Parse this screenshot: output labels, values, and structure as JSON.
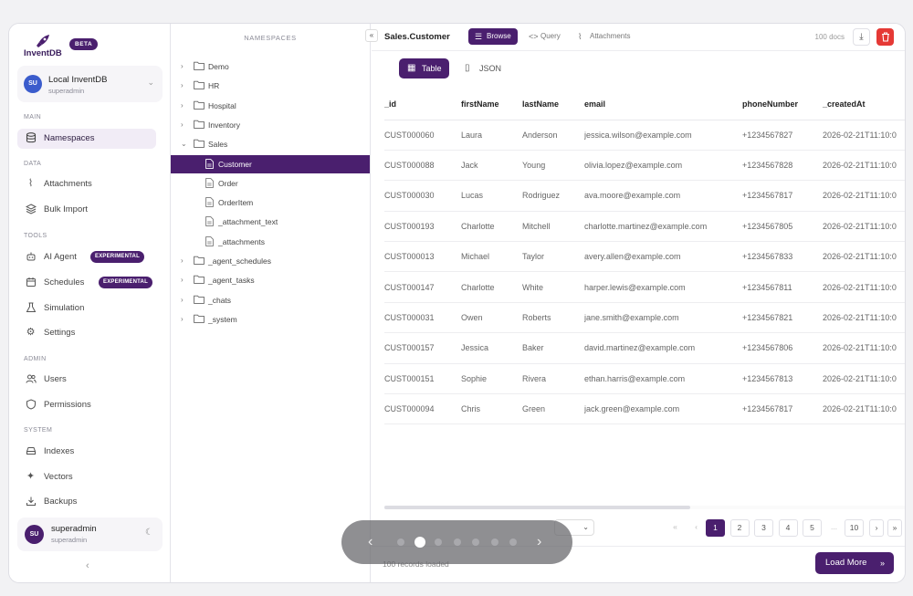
{
  "brand": {
    "name": "InventDB",
    "badge": "BETA"
  },
  "db": {
    "avatar": "SU",
    "name": "Local InventDB",
    "user": "superadmin"
  },
  "sidebar": {
    "sections": {
      "main": "MAIN",
      "data": "DATA",
      "tools": "TOOLS",
      "admin": "ADMIN",
      "system": "SYSTEM"
    },
    "items": {
      "namespaces": "Namespaces",
      "attachments": "Attachments",
      "bulk_import": "Bulk Import",
      "ai_agent": "AI Agent",
      "schedules": "Schedules",
      "simulation": "Simulation",
      "settings": "Settings",
      "users": "Users",
      "permissions": "Permissions",
      "indexes": "Indexes",
      "vectors": "Vectors",
      "backups": "Backups"
    },
    "experimental_badge": "EXPERIMENTAL"
  },
  "user": {
    "avatar": "SU",
    "name": "superadmin",
    "sub": "superadmin"
  },
  "tree": {
    "header": "NAMESPACES",
    "collapse_icon": "«",
    "items": [
      {
        "label": "Demo",
        "kind": "folder",
        "expanded": false
      },
      {
        "label": "HR",
        "kind": "folder",
        "expanded": false
      },
      {
        "label": "Hospital",
        "kind": "folder",
        "expanded": false
      },
      {
        "label": "Inventory",
        "kind": "folder",
        "expanded": false
      },
      {
        "label": "Sales",
        "kind": "folder",
        "expanded": true
      },
      {
        "label": "Customer",
        "kind": "collection",
        "selected": true
      },
      {
        "label": "Order",
        "kind": "collection"
      },
      {
        "label": "OrderItem",
        "kind": "collection"
      },
      {
        "label": "_attachment_text",
        "kind": "collection"
      },
      {
        "label": "_attachments",
        "kind": "collection"
      },
      {
        "label": "_agent_schedules",
        "kind": "folder",
        "expanded": false
      },
      {
        "label": "_agent_tasks",
        "kind": "folder",
        "expanded": false
      },
      {
        "label": "_chats",
        "kind": "folder",
        "expanded": false
      },
      {
        "label": "_system",
        "kind": "folder",
        "expanded": false
      }
    ]
  },
  "main": {
    "title": "Sales.Customer",
    "tabs": {
      "browse": "Browse",
      "query": "Query",
      "attachments": "Attachments"
    },
    "doc_count": "100 docs",
    "views": {
      "table": "Table",
      "json": "JSON"
    },
    "columns": [
      "_id",
      "firstName",
      "lastName",
      "email",
      "phoneNumber",
      "_createdAt"
    ],
    "rows": [
      [
        "CUST000060",
        "Laura",
        "Anderson",
        "jessica.wilson@example.com",
        "+1234567827",
        "2026-02-21T11:10:0"
      ],
      [
        "CUST000088",
        "Jack",
        "Young",
        "olivia.lopez@example.com",
        "+1234567828",
        "2026-02-21T11:10:0"
      ],
      [
        "CUST000030",
        "Lucas",
        "Rodriguez",
        "ava.moore@example.com",
        "+1234567817",
        "2026-02-21T11:10:0"
      ],
      [
        "CUST000193",
        "Charlotte",
        "Mitchell",
        "charlotte.martinez@example.com",
        "+1234567805",
        "2026-02-21T11:10:0"
      ],
      [
        "CUST000013",
        "Michael",
        "Taylor",
        "avery.allen@example.com",
        "+1234567833",
        "2026-02-21T11:10:0"
      ],
      [
        "CUST000147",
        "Charlotte",
        "White",
        "harper.lewis@example.com",
        "+1234567811",
        "2026-02-21T11:10:0"
      ],
      [
        "CUST000031",
        "Owen",
        "Roberts",
        "jane.smith@example.com",
        "+1234567821",
        "2026-02-21T11:10:0"
      ],
      [
        "CUST000157",
        "Jessica",
        "Baker",
        "david.martinez@example.com",
        "+1234567806",
        "2026-02-21T11:10:0"
      ],
      [
        "CUST000151",
        "Sophie",
        "Rivera",
        "ethan.harris@example.com",
        "+1234567813",
        "2026-02-21T11:10:0"
      ],
      [
        "CUST000094",
        "Chris",
        "Green",
        "jack.green@example.com",
        "+1234567817",
        "2026-02-21T11:10:0"
      ]
    ],
    "pagination": {
      "first": "«",
      "prev": "‹",
      "pages": [
        "1",
        "2",
        "3",
        "4",
        "5"
      ],
      "ellipsis": "...",
      "last_page": "10",
      "next": "›",
      "last": "»",
      "current": "1"
    },
    "records_loaded": "100 records loaded",
    "load_more": "Load More"
  },
  "carousel": {
    "slide_count": 7,
    "active_index": 1,
    "prev": "‹",
    "next": "›"
  },
  "colors": {
    "accent": "#4a1f6e",
    "danger": "#e53935",
    "db_avatar": "#3b5ccc"
  }
}
